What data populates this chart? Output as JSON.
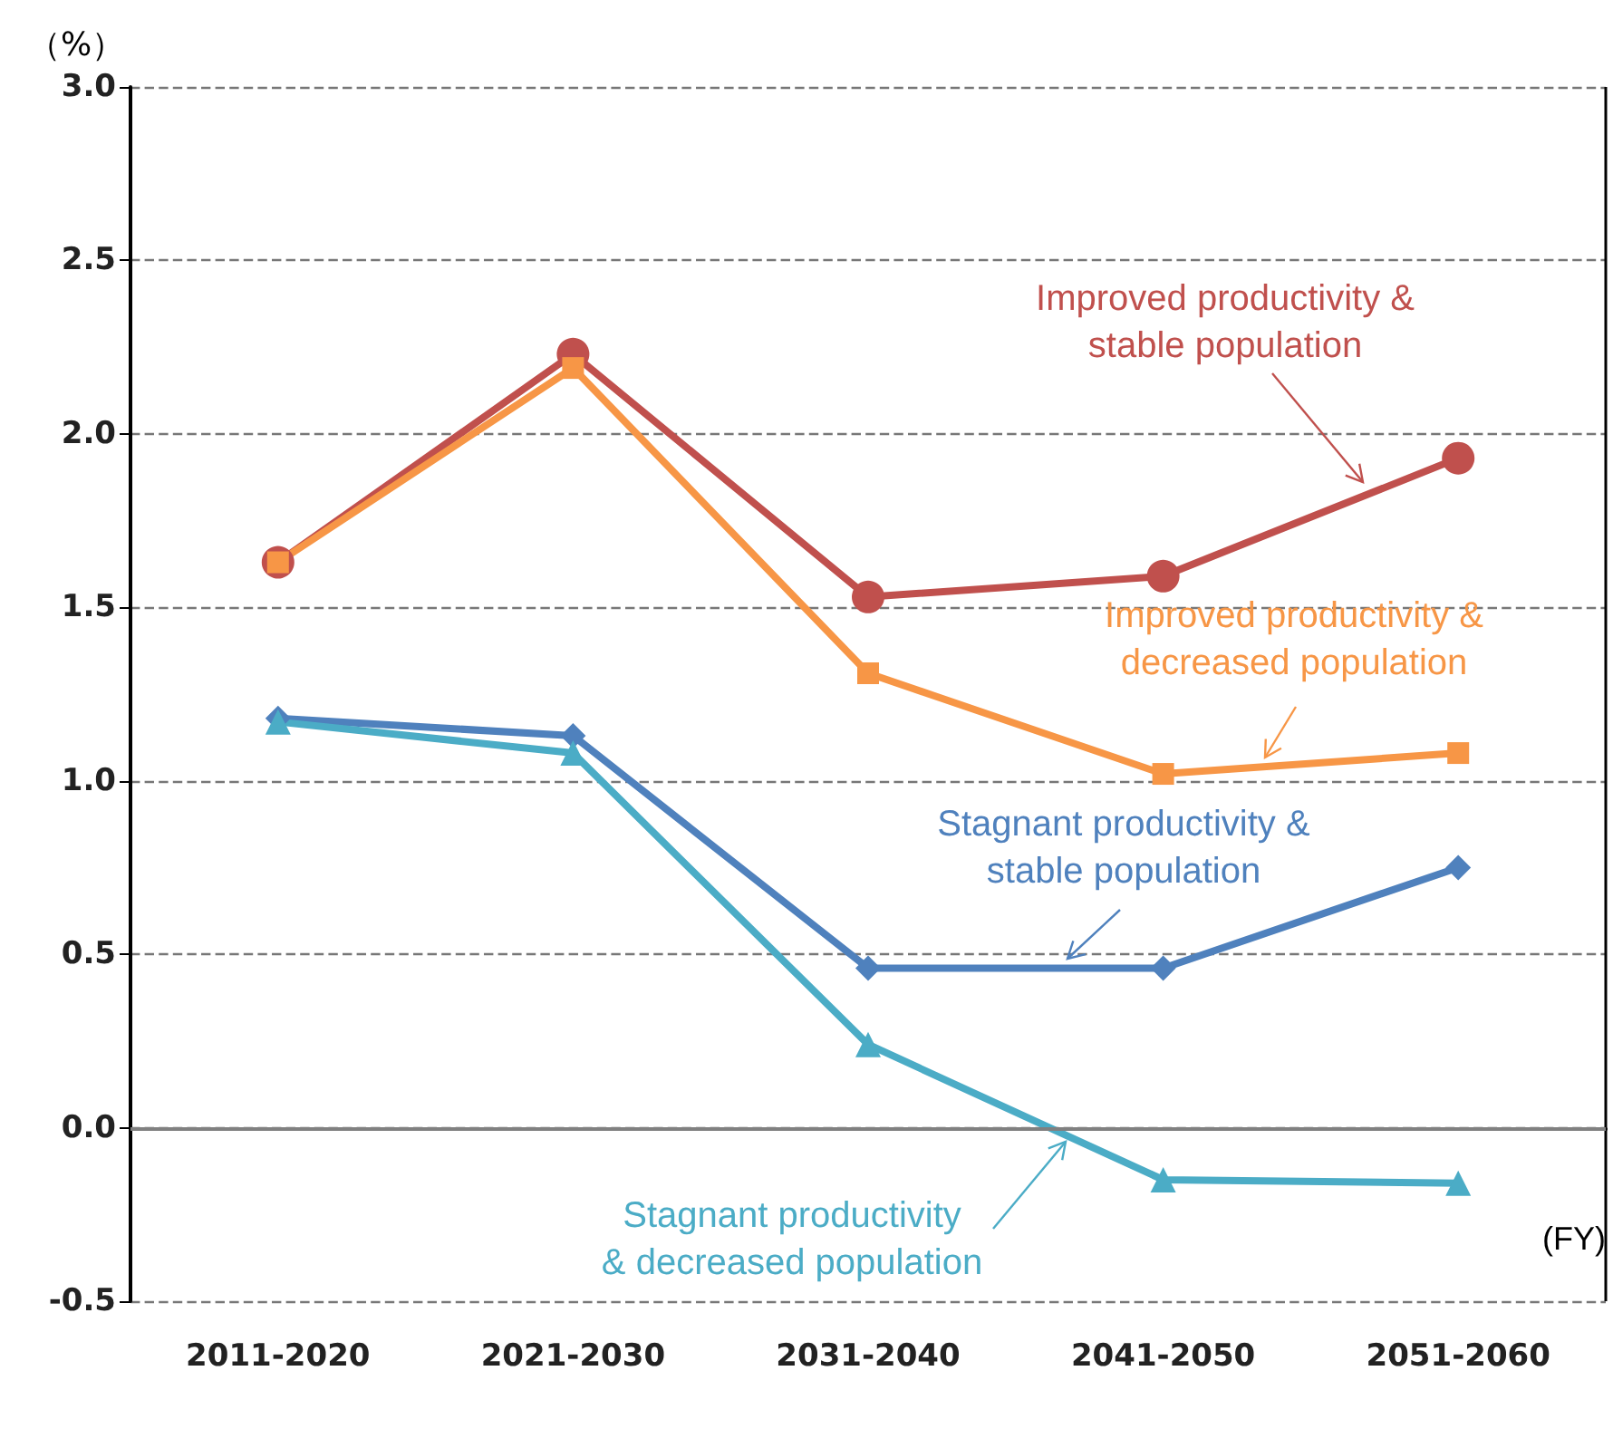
{
  "chart_data": {
    "type": "line",
    "ylabel": "（%）",
    "xlabel": "(FY)",
    "categories": [
      "2011-2020",
      "2021-2030",
      "2031-2040",
      "2041-2050",
      "2051-2060"
    ],
    "series": [
      {
        "name": "Improved productivity &\nstable population",
        "color": "#c0504d",
        "marker": "circle",
        "values": [
          1.63,
          2.23,
          1.53,
          1.59,
          1.93
        ]
      },
      {
        "name": "Improved productivity &\ndecreased population",
        "color": "#f79646",
        "marker": "square",
        "values": [
          1.63,
          2.19,
          1.31,
          1.02,
          1.08
        ]
      },
      {
        "name": "Stagnant productivity &\nstable population",
        "color": "#4f81bd",
        "marker": "diamond",
        "values": [
          1.18,
          1.13,
          0.46,
          0.46,
          0.75
        ]
      },
      {
        "name": "Stagnant productivity\n& decreased population",
        "color": "#4bacc6",
        "marker": "triangle",
        "values": [
          1.17,
          1.08,
          0.24,
          -0.15,
          -0.16
        ]
      }
    ],
    "ylim": [
      -0.5,
      3.0
    ],
    "yticks": [
      -0.5,
      {
        "value": 0,
        "label": "0.0"
      },
      0.5,
      {
        "value": 1,
        "label": "1.0"
      },
      1.5,
      {
        "value": 2,
        "label": "2.0"
      },
      2.5,
      {
        "value": 3,
        "label": "3.0"
      }
    ],
    "grid": "y",
    "ref_lines": [
      {
        "axis": "y",
        "value": 0,
        "color": "#808080",
        "line_style": "solid"
      }
    ],
    "legend": false
  }
}
